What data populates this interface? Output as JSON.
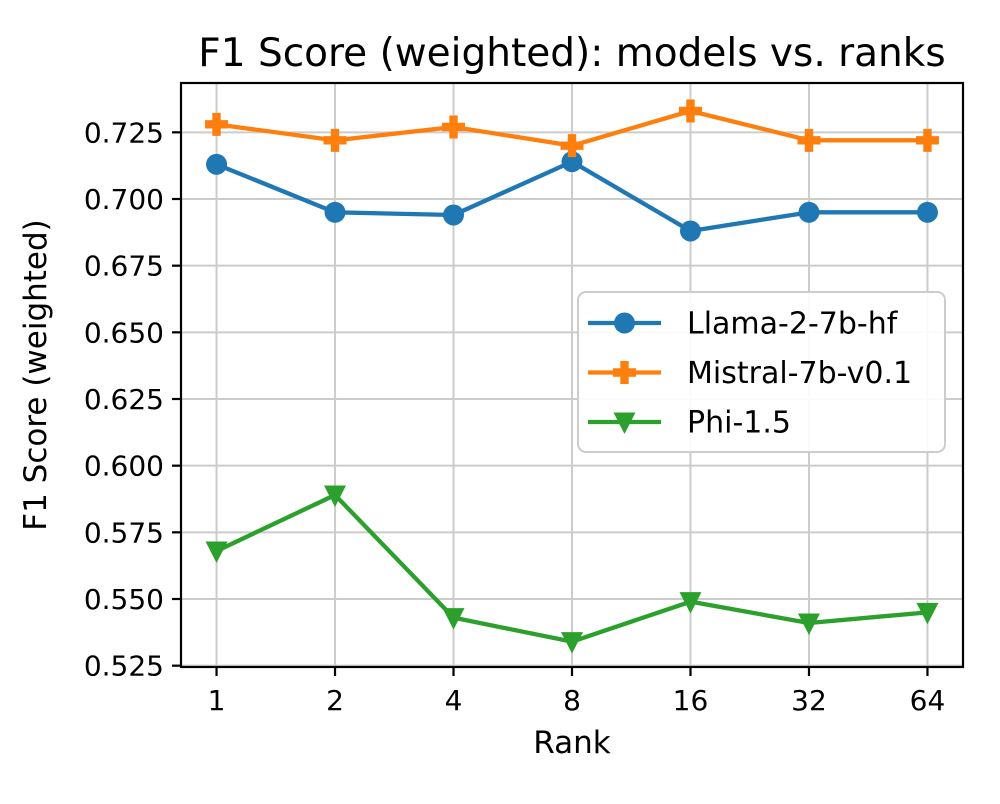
{
  "chart_data": {
    "type": "line",
    "title": "F1 Score (weighted): models vs. ranks",
    "xlabel": "Rank",
    "ylabel": "F1 Score (weighted)",
    "categories": [
      1,
      2,
      4,
      8,
      16,
      32,
      64
    ],
    "x_scale_note": "categorical, equally spaced powers of two",
    "series": [
      {
        "name": "Llama-2-7b-hf",
        "color": "#1f77b4",
        "marker": "circle-marker",
        "values": [
          0.713,
          0.695,
          0.694,
          0.714,
          0.688,
          0.695,
          0.695
        ]
      },
      {
        "name": "Mistral-7b-v0.1",
        "color": "#ff7f0e",
        "marker": "plus-marker",
        "values": [
          0.728,
          0.722,
          0.727,
          0.72,
          0.733,
          0.722,
          0.722
        ]
      },
      {
        "name": "Phi-1.5",
        "color": "#2ca02c",
        "marker": "triangle-down-marker",
        "values": [
          0.568,
          0.589,
          0.543,
          0.534,
          0.549,
          0.541,
          0.545
        ]
      }
    ],
    "yticks": [
      0.525,
      0.55,
      0.575,
      0.6,
      0.625,
      0.65,
      0.675,
      0.7,
      0.725
    ],
    "ytick_labels": [
      "0.525",
      "0.550",
      "0.575",
      "0.600",
      "0.625",
      "0.650",
      "0.675",
      "0.700",
      "0.725"
    ],
    "ylim": [
      0.5245,
      0.7435
    ],
    "grid": true,
    "legend_position": "center right"
  },
  "style": {
    "background": "#ffffff",
    "grid_color": "#cccccc",
    "spine_color": "#000000",
    "legend_border_color": "#cccccc",
    "legend_background": "rgba(255,255,255,0.9)",
    "text_color": "#000000"
  }
}
